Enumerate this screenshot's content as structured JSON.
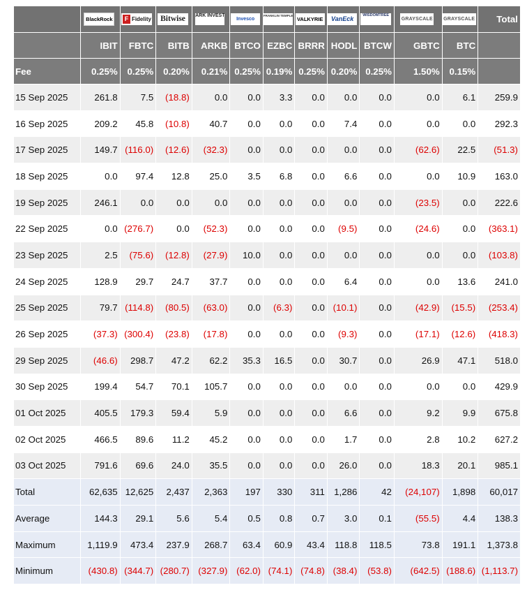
{
  "header": {
    "logos": [
      {
        "name": "blackrock-logo",
        "text": "BlackRock"
      },
      {
        "name": "fidelity-logo",
        "text": "Fidelity"
      },
      {
        "name": "bitwise-logo",
        "text": "Bitwise"
      },
      {
        "name": "ark-logo",
        "text": "ARK INVEST"
      },
      {
        "name": "invesco-logo",
        "text": "Invesco"
      },
      {
        "name": "franklin-logo",
        "text": "FRANKLIN TEMPLETON"
      },
      {
        "name": "valkyrie-logo",
        "text": "VALKYRIE"
      },
      {
        "name": "vaneck-logo",
        "text": "VanEck"
      },
      {
        "name": "wisdomtree-logo",
        "text": "WISDOMTREE"
      },
      {
        "name": "grayscale-gbtc-logo",
        "text": "GRAYSCALE"
      },
      {
        "name": "grayscale-btc-logo",
        "text": "GRAYSCALE"
      }
    ],
    "total_label": "Total",
    "tickers": [
      "IBIT",
      "FBTC",
      "BITB",
      "ARKB",
      "BTCO",
      "EZBC",
      "BRRR",
      "HODL",
      "BTCW",
      "GBTC",
      "BTC"
    ],
    "fee_label": "Fee",
    "fees": [
      "0.25%",
      "0.25%",
      "0.20%",
      "0.21%",
      "0.25%",
      "0.19%",
      "0.25%",
      "0.20%",
      "0.25%",
      "1.50%",
      "0.15%"
    ]
  },
  "rows": [
    {
      "date": "15 Sep 2025",
      "values": [
        "261.8",
        "7.5",
        "(18.8)",
        "0.0",
        "0.0",
        "3.3",
        "0.0",
        "0.0",
        "0.0",
        "0.0",
        "6.1",
        "259.9"
      ]
    },
    {
      "date": "16 Sep 2025",
      "values": [
        "209.2",
        "45.8",
        "(10.8)",
        "40.7",
        "0.0",
        "0.0",
        "0.0",
        "7.4",
        "0.0",
        "0.0",
        "0.0",
        "292.3"
      ]
    },
    {
      "date": "17 Sep 2025",
      "values": [
        "149.7",
        "(116.0)",
        "(12.6)",
        "(32.3)",
        "0.0",
        "0.0",
        "0.0",
        "0.0",
        "0.0",
        "(62.6)",
        "22.5",
        "(51.3)"
      ]
    },
    {
      "date": "18 Sep 2025",
      "values": [
        "0.0",
        "97.4",
        "12.8",
        "25.0",
        "3.5",
        "6.8",
        "0.0",
        "6.6",
        "0.0",
        "0.0",
        "10.9",
        "163.0"
      ]
    },
    {
      "date": "19 Sep 2025",
      "values": [
        "246.1",
        "0.0",
        "0.0",
        "0.0",
        "0.0",
        "0.0",
        "0.0",
        "0.0",
        "0.0",
        "(23.5)",
        "0.0",
        "222.6"
      ]
    },
    {
      "date": "22 Sep 2025",
      "values": [
        "0.0",
        "(276.7)",
        "0.0",
        "(52.3)",
        "0.0",
        "0.0",
        "0.0",
        "(9.5)",
        "0.0",
        "(24.6)",
        "0.0",
        "(363.1)"
      ]
    },
    {
      "date": "23 Sep 2025",
      "values": [
        "2.5",
        "(75.6)",
        "(12.8)",
        "(27.9)",
        "10.0",
        "0.0",
        "0.0",
        "0.0",
        "0.0",
        "0.0",
        "0.0",
        "(103.8)"
      ]
    },
    {
      "date": "24 Sep 2025",
      "values": [
        "128.9",
        "29.7",
        "24.7",
        "37.7",
        "0.0",
        "0.0",
        "0.0",
        "6.4",
        "0.0",
        "0.0",
        "13.6",
        "241.0"
      ]
    },
    {
      "date": "25 Sep 2025",
      "values": [
        "79.7",
        "(114.8)",
        "(80.5)",
        "(63.0)",
        "0.0",
        "(6.3)",
        "0.0",
        "(10.1)",
        "0.0",
        "(42.9)",
        "(15.5)",
        "(253.4)"
      ]
    },
    {
      "date": "26 Sep 2025",
      "values": [
        "(37.3)",
        "(300.4)",
        "(23.8)",
        "(17.8)",
        "0.0",
        "0.0",
        "0.0",
        "(9.3)",
        "0.0",
        "(17.1)",
        "(12.6)",
        "(418.3)"
      ]
    },
    {
      "date": "29 Sep 2025",
      "values": [
        "(46.6)",
        "298.7",
        "47.2",
        "62.2",
        "35.3",
        "16.5",
        "0.0",
        "30.7",
        "0.0",
        "26.9",
        "47.1",
        "518.0"
      ]
    },
    {
      "date": "30 Sep 2025",
      "values": [
        "199.4",
        "54.7",
        "70.1",
        "105.7",
        "0.0",
        "0.0",
        "0.0",
        "0.0",
        "0.0",
        "0.0",
        "0.0",
        "429.9"
      ]
    },
    {
      "date": "01 Oct 2025",
      "values": [
        "405.5",
        "179.3",
        "59.4",
        "5.9",
        "0.0",
        "0.0",
        "0.0",
        "6.6",
        "0.0",
        "9.2",
        "9.9",
        "675.8"
      ]
    },
    {
      "date": "02 Oct 2025",
      "values": [
        "466.5",
        "89.6",
        "11.2",
        "45.2",
        "0.0",
        "0.0",
        "0.0",
        "1.7",
        "0.0",
        "2.8",
        "10.2",
        "627.2"
      ]
    },
    {
      "date": "03 Oct 2025",
      "values": [
        "791.6",
        "69.6",
        "24.0",
        "35.5",
        "0.0",
        "0.0",
        "0.0",
        "26.0",
        "0.0",
        "18.3",
        "20.1",
        "985.1"
      ]
    }
  ],
  "summary": [
    {
      "label": "Total",
      "values": [
        "62,635",
        "12,625",
        "2,437",
        "2,363",
        "197",
        "330",
        "311",
        "1,286",
        "42",
        "(24,107)",
        "1,898",
        "60,017"
      ]
    },
    {
      "label": "Average",
      "values": [
        "144.3",
        "29.1",
        "5.6",
        "5.4",
        "0.5",
        "0.8",
        "0.7",
        "3.0",
        "0.1",
        "(55.5)",
        "4.4",
        "138.3"
      ]
    },
    {
      "label": "Maximum",
      "values": [
        "1,119.9",
        "473.4",
        "237.9",
        "268.7",
        "63.4",
        "60.9",
        "43.4",
        "118.8",
        "118.5",
        "73.8",
        "191.1",
        "1,373.8"
      ]
    },
    {
      "label": "Minimum",
      "values": [
        "(430.8)",
        "(344.7)",
        "(280.7)",
        "(327.9)",
        "(62.0)",
        "(74.1)",
        "(74.8)",
        "(38.4)",
        "(53.8)",
        "(642.5)",
        "(188.6)",
        "(1,113.7)"
      ]
    }
  ],
  "colors": {
    "header_bg": "#7c7c7c",
    "logo_row_bg": "#727272",
    "row_alt_bg": "#eeeeee",
    "summary_bg": "#e6ebf5",
    "negative": "#dd0000"
  }
}
